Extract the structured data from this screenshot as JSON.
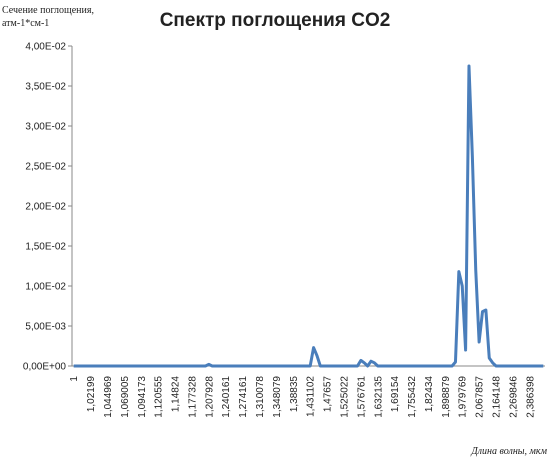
{
  "chart_data": {
    "type": "line",
    "title": "Спектр поглощения CO2",
    "y_label": [
      "Сечение поглощения,",
      "атм-1*см-1"
    ],
    "x_label": "Длина волны, мкм",
    "categories": [
      "1",
      null,
      null,
      null,
      null,
      "1,02199",
      null,
      null,
      null,
      null,
      "1,044969",
      null,
      null,
      null,
      null,
      "1,069005",
      null,
      null,
      null,
      null,
      "1,094173",
      null,
      null,
      null,
      null,
      "1,120555",
      null,
      null,
      null,
      null,
      "1,14824",
      null,
      null,
      null,
      null,
      "1,177328",
      null,
      null,
      null,
      null,
      "1,207928",
      null,
      null,
      null,
      null,
      "1,240161",
      null,
      null,
      null,
      null,
      "1,274161",
      null,
      null,
      null,
      null,
      "1,310078",
      null,
      null,
      null,
      null,
      "1,348079",
      null,
      null,
      null,
      null,
      "1,38835",
      null,
      null,
      null,
      null,
      "1,431102",
      null,
      null,
      null,
      null,
      "1,47657",
      null,
      null,
      null,
      null,
      "1,525022",
      null,
      null,
      null,
      null,
      "1,576761",
      null,
      null,
      null,
      null,
      "1,632135",
      null,
      null,
      null,
      null,
      "1,69154",
      null,
      null,
      null,
      null,
      "1,755432",
      null,
      null,
      null,
      null,
      "1,82434",
      null,
      null,
      null,
      null,
      "1,898879",
      null,
      null,
      null,
      null,
      "1,979769",
      null,
      null,
      null,
      null,
      "2,067857",
      null,
      null,
      null,
      null,
      "2,164148",
      null,
      null,
      null,
      null,
      "2,269846",
      null,
      null,
      null,
      null,
      "2,386398",
      null,
      null,
      null,
      null
    ],
    "series": [
      {
        "name": "CO2",
        "color": "#4a7ebb",
        "values": [
          0,
          0,
          0,
          0,
          0,
          0,
          0,
          0,
          0,
          0,
          0,
          0,
          0,
          0,
          0,
          0,
          0,
          0,
          0,
          0,
          0,
          0,
          0,
          0,
          0,
          0,
          0,
          0,
          0,
          0,
          0,
          0,
          0,
          0,
          0,
          0,
          0,
          0,
          0,
          0,
          0.0002,
          0,
          0,
          0,
          0,
          0,
          0,
          0,
          0,
          0,
          0,
          0,
          0,
          0,
          0,
          0,
          0,
          0,
          0,
          0,
          0,
          0,
          0,
          0,
          0,
          0,
          0,
          0,
          0,
          0,
          0,
          0.0023,
          0.0013,
          0,
          0,
          0,
          0,
          0,
          0,
          0,
          0,
          0,
          0,
          0,
          0,
          0.0007,
          0.0004,
          0,
          0.0006,
          0.0004,
          0,
          0,
          0,
          0,
          0,
          0,
          0,
          0,
          0,
          0,
          0,
          0,
          0,
          0,
          0,
          0,
          0,
          0,
          0,
          0,
          0,
          0,
          0,
          0.0005,
          0.0118,
          0.01,
          0.002,
          0.0375,
          0.0262,
          0.012,
          0.003,
          0.0068,
          0.007,
          0.001,
          0.0004,
          0,
          0,
          0,
          0,
          0,
          0,
          0,
          0,
          0,
          0,
          0,
          0,
          0,
          0,
          0
        ]
      }
    ],
    "ylim": [
      0,
      0.04
    ],
    "yticks": [
      {
        "value": 0,
        "label": "0,00E+00"
      },
      {
        "value": 0.005,
        "label": "5,00E-03"
      },
      {
        "value": 0.01,
        "label": "1,00E-02"
      },
      {
        "value": 0.015,
        "label": "1,50E-02"
      },
      {
        "value": 0.02,
        "label": "2,00E-02"
      },
      {
        "value": 0.025,
        "label": "2,50E-02"
      },
      {
        "value": 0.03,
        "label": "3,00E-02"
      },
      {
        "value": 0.035,
        "label": "3,50E-02"
      },
      {
        "value": 0.04,
        "label": "4,00E-02"
      }
    ],
    "grid": false
  }
}
